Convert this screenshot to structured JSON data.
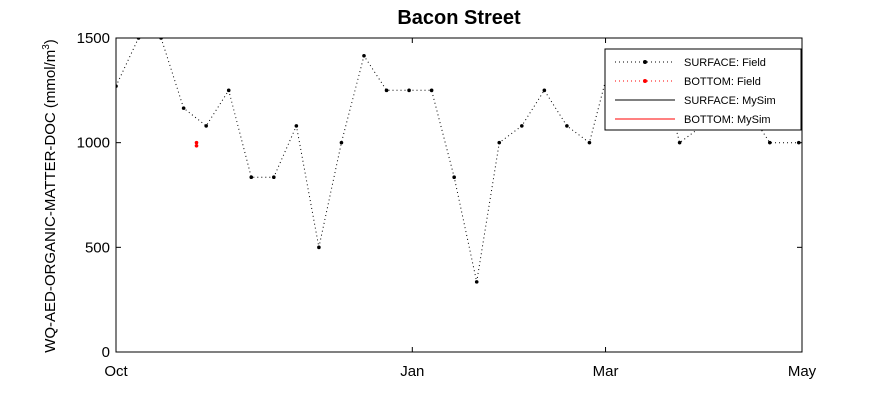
{
  "chart_data": {
    "type": "line",
    "title": "Bacon Street",
    "ylabel": "WQ-AED-ORGANIC-MATTER-DOC (mmol/m",
    "ylabel_sup": "3",
    "ylabel_close": ")",
    "xlabel": "",
    "x_axis_type": "date",
    "xlim": [
      "2015-10-01",
      "2016-05-01"
    ],
    "ylim": [
      0,
      1500
    ],
    "x_ticks": [
      {
        "date": "2015-10-01",
        "label": "Oct"
      },
      {
        "date": "2016-01-01",
        "label": "Jan"
      },
      {
        "date": "2016-03-01",
        "label": "Mar"
      },
      {
        "date": "2016-05-01",
        "label": "May"
      }
    ],
    "y_ticks": [
      0,
      500,
      1000,
      1500
    ],
    "grid": false,
    "legend_position": "top-right",
    "series": [
      {
        "name": "SURFACE: Field",
        "color": "#000000",
        "style": "dotted-markers",
        "points": [
          {
            "x": "2015-10-01",
            "y": 1270
          },
          {
            "x": "2015-10-08",
            "y": 1500
          },
          {
            "x": "2015-10-15",
            "y": 1500
          },
          {
            "x": "2015-10-22",
            "y": 1165
          },
          {
            "x": "2015-10-29",
            "y": 1080
          },
          {
            "x": "2015-11-05",
            "y": 1250
          },
          {
            "x": "2015-11-12",
            "y": 835
          },
          {
            "x": "2015-11-19",
            "y": 835
          },
          {
            "x": "2015-11-26",
            "y": 1080
          },
          {
            "x": "2015-12-03",
            "y": 500
          },
          {
            "x": "2015-12-10",
            "y": 1000
          },
          {
            "x": "2015-12-17",
            "y": 1415
          },
          {
            "x": "2015-12-24",
            "y": 1250
          },
          {
            "x": "2015-12-31",
            "y": 1250
          },
          {
            "x": "2016-01-07",
            "y": 1250
          },
          {
            "x": "2016-01-14",
            "y": 835
          },
          {
            "x": "2016-01-21",
            "y": 335
          },
          {
            "x": "2016-01-28",
            "y": 1000
          },
          {
            "x": "2016-02-04",
            "y": 1080
          },
          {
            "x": "2016-02-11",
            "y": 1250
          },
          {
            "x": "2016-02-18",
            "y": 1080
          },
          {
            "x": "2016-02-25",
            "y": 1000
          },
          {
            "x": "2016-03-03",
            "y": 1415
          },
          {
            "x": "2016-03-10",
            "y": 1415
          },
          {
            "x": "2016-03-17",
            "y": 1415
          },
          {
            "x": "2016-03-24",
            "y": 1000
          },
          {
            "x": "2016-03-31",
            "y": 1080
          },
          {
            "x": "2016-04-07",
            "y": 1165
          },
          {
            "x": "2016-04-14",
            "y": 1165
          },
          {
            "x": "2016-04-21",
            "y": 1000
          },
          {
            "x": "2016-04-30",
            "y": 1000
          }
        ]
      },
      {
        "name": "BOTTOM: Field",
        "color": "#ff0000",
        "style": "dotted-markers",
        "points": [
          {
            "x": "2015-10-26",
            "y": 1000
          },
          {
            "x": "2015-10-26",
            "y": 985
          }
        ]
      },
      {
        "name": "SURFACE: MySim",
        "color": "#000000",
        "style": "solid",
        "points": []
      },
      {
        "name": "BOTTOM: MySim",
        "color": "#ff0000",
        "style": "solid",
        "points": []
      }
    ]
  }
}
